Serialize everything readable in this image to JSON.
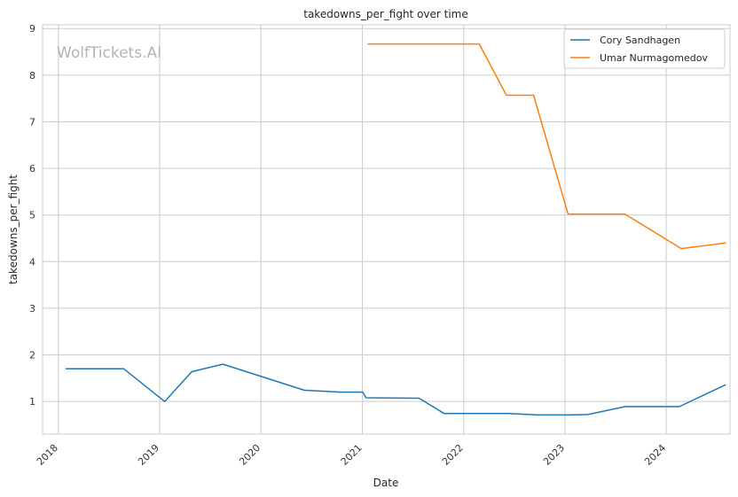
{
  "chart_data": {
    "type": "line",
    "title": "takedowns_per_fight over time",
    "xlabel": "Date",
    "ylabel": "takedowns_per_fight",
    "watermark": "WolfTickets.AI",
    "x_ticks": [
      "2018",
      "2019",
      "2020",
      "2021",
      "2022",
      "2023",
      "2024"
    ],
    "y_ticks": [
      1,
      2,
      3,
      4,
      5,
      6,
      7,
      8,
      9
    ],
    "xlim": [
      "2017-11-05",
      "2024-08-18"
    ],
    "ylim": [
      0.3,
      9.08
    ],
    "grid": true,
    "legend_position": "top-right",
    "series": [
      {
        "name": "Cory Sandhagen",
        "color": "#1f77b4",
        "points": [
          [
            "2018-01-27",
            1.7
          ],
          [
            "2018-08-25",
            1.7
          ],
          [
            "2019-01-19",
            1.0
          ],
          [
            "2019-04-27",
            1.64
          ],
          [
            "2019-08-17",
            1.8
          ],
          [
            "2020-06-06",
            1.24
          ],
          [
            "2020-10-11",
            1.2
          ],
          [
            "2021-01-02",
            1.2
          ],
          [
            "2021-01-14",
            1.08
          ],
          [
            "2021-07-24",
            1.07
          ],
          [
            "2021-10-23",
            0.74
          ],
          [
            "2022-06-14",
            0.74
          ],
          [
            "2022-09-26",
            0.71
          ],
          [
            "2023-01-14",
            0.71
          ],
          [
            "2023-03-25",
            0.72
          ],
          [
            "2023-08-05",
            0.89
          ],
          [
            "2024-02-17",
            0.89
          ],
          [
            "2024-08-03",
            1.36
          ]
        ]
      },
      {
        "name": "Umar Nurmagomedov",
        "color": "#ff7f0e",
        "points": [
          [
            "2021-01-20",
            8.67
          ],
          [
            "2022-02-26",
            8.67
          ],
          [
            "2022-06-04",
            7.57
          ],
          [
            "2022-09-10",
            7.57
          ],
          [
            "2023-01-12",
            5.02
          ],
          [
            "2023-08-05",
            5.02
          ],
          [
            "2024-02-24",
            4.28
          ],
          [
            "2024-08-03",
            4.4
          ]
        ]
      }
    ]
  }
}
